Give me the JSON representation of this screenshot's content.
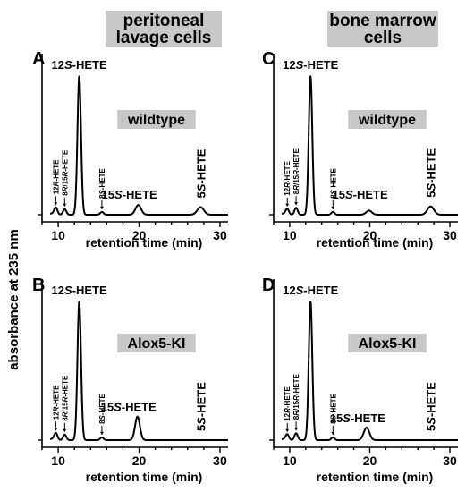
{
  "headers": {
    "left": [
      "peritoneal",
      "lavage cells"
    ],
    "right": [
      "bone marrow",
      "cells"
    ]
  },
  "ylabel": "absorbance at 235 nm",
  "chart_data": [
    {
      "panel": "A",
      "type": "line",
      "column": "left",
      "row": "top",
      "condition": "wildtype",
      "xlabel": "retention time (min)",
      "xticks": [
        10,
        20,
        30
      ],
      "xlim": [
        8,
        31
      ],
      "peaks": [
        {
          "label": "12S-HETE",
          "rt": 12.6,
          "height": 1.0,
          "width": 0.22,
          "style": "top"
        },
        {
          "label": "12R-HETE",
          "rt": 9.7,
          "height": 0.05,
          "width": 0.2,
          "style": "arrow"
        },
        {
          "label": "8R/15R-HETE",
          "rt": 10.8,
          "height": 0.04,
          "width": 0.2,
          "style": "arrow"
        },
        {
          "label": "8S-HETE",
          "rt": 15.4,
          "height": 0.02,
          "width": 0.2,
          "style": "arrow"
        },
        {
          "label": "15S-HETE",
          "rt": 19.9,
          "height": 0.07,
          "width": 0.35,
          "style": "big"
        },
        {
          "label": "5S-HETE",
          "rt": 27.6,
          "height": 0.055,
          "width": 0.4,
          "style": "bigvert"
        }
      ]
    },
    {
      "panel": "C",
      "type": "line",
      "column": "right",
      "row": "top",
      "condition": "wildtype",
      "xlabel": "retention time (min)",
      "xticks": [
        10,
        20,
        30
      ],
      "xlim": [
        8,
        31
      ],
      "peaks": [
        {
          "label": "12S-HETE",
          "rt": 12.6,
          "height": 1.0,
          "width": 0.22,
          "style": "top"
        },
        {
          "label": "12R-HETE",
          "rt": 9.7,
          "height": 0.04,
          "width": 0.2,
          "style": "arrow"
        },
        {
          "label": "8R/15R-HETE",
          "rt": 10.8,
          "height": 0.05,
          "width": 0.2,
          "style": "arrow"
        },
        {
          "label": "8S-HETE",
          "rt": 15.4,
          "height": 0.02,
          "width": 0.2,
          "style": "arrow"
        },
        {
          "label": "15S-HETE",
          "rt": 19.9,
          "height": 0.03,
          "width": 0.35,
          "style": "big"
        },
        {
          "label": "5S-HETE",
          "rt": 27.6,
          "height": 0.06,
          "width": 0.4,
          "style": "bigvert"
        }
      ]
    },
    {
      "panel": "B",
      "type": "line",
      "column": "left",
      "row": "bottom",
      "condition": "Alox5-KI",
      "xlabel": "retention time (min)",
      "xticks": [
        10,
        20,
        30
      ],
      "xlim": [
        8,
        31
      ],
      "peaks": [
        {
          "label": "12S-HETE",
          "rt": 12.6,
          "height": 1.0,
          "width": 0.22,
          "style": "top"
        },
        {
          "label": "12R-HETE",
          "rt": 9.7,
          "height": 0.05,
          "width": 0.2,
          "style": "arrow"
        },
        {
          "label": "8R/15R-HETE",
          "rt": 10.8,
          "height": 0.04,
          "width": 0.2,
          "style": "arrow"
        },
        {
          "label": "8S-HETE",
          "rt": 15.4,
          "height": 0.02,
          "width": 0.2,
          "style": "arrow"
        },
        {
          "label": "15S-HETE",
          "rt": 19.8,
          "height": 0.17,
          "width": 0.3,
          "style": "big"
        },
        {
          "label": "5S-HETE",
          "rt": 27.6,
          "height": 0.0,
          "width": 0.4,
          "style": "bigvert"
        }
      ]
    },
    {
      "panel": "D",
      "type": "line",
      "column": "right",
      "row": "bottom",
      "condition": "Alox5-KI",
      "xlabel": "retention time (min)",
      "xticks": [
        10,
        20,
        30
      ],
      "xlim": [
        8,
        31
      ],
      "peaks": [
        {
          "label": "12S-HETE",
          "rt": 12.6,
          "height": 1.0,
          "width": 0.22,
          "style": "top"
        },
        {
          "label": "12R-HETE",
          "rt": 9.7,
          "height": 0.04,
          "width": 0.2,
          "style": "arrow"
        },
        {
          "label": "8R/15R-HETE",
          "rt": 10.8,
          "height": 0.05,
          "width": 0.2,
          "style": "arrow"
        },
        {
          "label": "8S-HETE",
          "rt": 15.4,
          "height": 0.02,
          "width": 0.2,
          "style": "arrow"
        },
        {
          "label": "15S-HETE",
          "rt": 19.6,
          "height": 0.09,
          "width": 0.35,
          "style": "big"
        },
        {
          "label": "5S-HETE",
          "rt": 27.6,
          "height": 0.0,
          "width": 0.4,
          "style": "bigvert"
        }
      ]
    }
  ]
}
